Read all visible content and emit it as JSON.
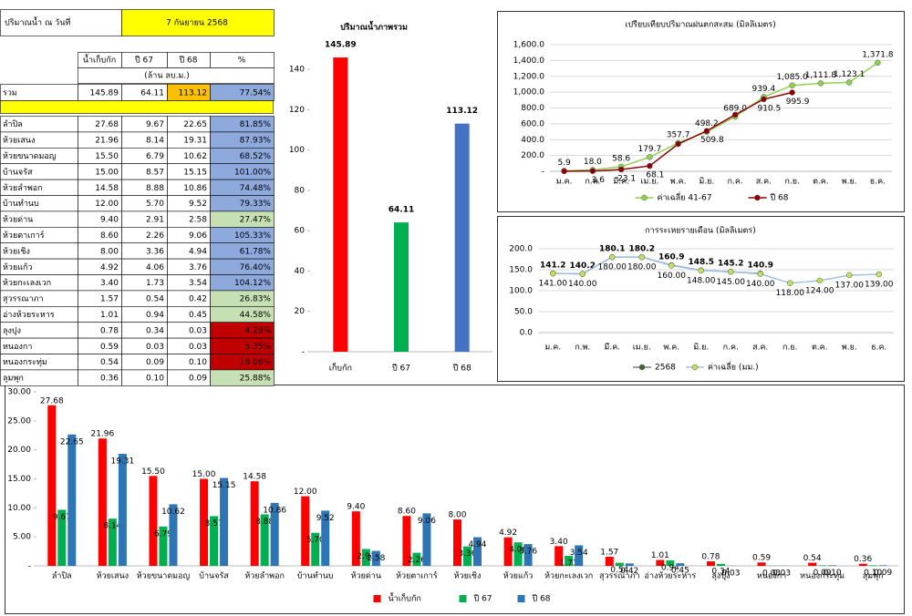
{
  "table": {
    "date_label": "ปริมาณน้ำ ณ วันที่",
    "date": "7 กันยายน 2568",
    "columns": [
      "น้ำเก็บกัก",
      "ปี 67",
      "ปี 68",
      "%"
    ],
    "unit": "(ล้าน ลบ.ม.)",
    "total": [
      "รวม",
      "145.89",
      "64.11",
      "113.12",
      "77.54%"
    ],
    "rows": [
      [
        "ลำปิล",
        "27.68",
        "9.67",
        "22.65",
        "81.85%"
      ],
      [
        "ห้วยเสนง",
        "21.96",
        "8.14",
        "19.31",
        "87.93%"
      ],
      [
        "ห้วยขนาดมอญ",
        "15.50",
        "6.79",
        "10.62",
        "68.52%"
      ],
      [
        "บ้านจรัส",
        "15.00",
        "8.57",
        "15.15",
        "101.00%"
      ],
      [
        "ห้วยลำพอก",
        "14.58",
        "8.88",
        "10.86",
        "74.48%"
      ],
      [
        "บ้านทำนบ",
        "12.00",
        "5.70",
        "9.52",
        "79.33%"
      ],
      [
        "ห้วยด่าน",
        "9.40",
        "2.91",
        "2.58",
        "27.47%"
      ],
      [
        "ห้วยตาเการ์",
        "8.60",
        "2.26",
        "9.06",
        "105.33%"
      ],
      [
        "ห้วยเชิง",
        "8.00",
        "3.36",
        "4.94",
        "61.78%"
      ],
      [
        "ห้วยแก้ว",
        "4.92",
        "4.06",
        "3.76",
        "76.40%"
      ],
      [
        "ห้วยกะเลงเวก",
        "3.40",
        "1.73",
        "3.54",
        "104.12%"
      ],
      [
        "สุวรรณาภา",
        "1.57",
        "0.54",
        "0.42",
        "26.83%"
      ],
      [
        "อ่างห้วยระหาร",
        "1.01",
        "0.94",
        "0.45",
        "44.58%"
      ],
      [
        "ลุงปุง",
        "0.78",
        "0.34",
        "0.03",
        "4.29%"
      ],
      [
        "หนองกา",
        "0.59",
        "0.03",
        "0.03",
        "5.35%"
      ],
      [
        "หนองกระทุ่ม",
        "0.54",
        "0.09",
        "0.10",
        "18.06%"
      ],
      [
        "ลุมพุก",
        "0.36",
        "0.10",
        "0.09",
        "25.88%"
      ]
    ]
  },
  "chart_data": [
    {
      "type": "bar",
      "title": "ปริมาณน้ำภาพรวม",
      "categories": [
        "เก็บกัก",
        "ปี 67",
        "ปี 68"
      ],
      "values": [
        145.89,
        64.11,
        113.12
      ],
      "colors": [
        "#ff0000",
        "#00b050",
        "#4472c4"
      ],
      "ylim": [
        0,
        150
      ],
      "yticks": [
        {
          "value": 0,
          "label": "-"
        },
        20,
        40,
        60,
        80,
        100,
        120,
        140
      ],
      "grid": false
    },
    {
      "type": "line",
      "title": "เปรียบเทียบปริมาณฝนตกสะสม (มิลลิเมตร)",
      "categories": [
        "ม.ค.",
        "ก.พ.",
        "มี.ค.",
        "เม.ย.",
        "พ.ค.",
        "มิ.ย.",
        "ก.ค.",
        "ส.ค.",
        "ก.ย.",
        "ต.ค.",
        "พ.ย.",
        "ธ.ค."
      ],
      "series": [
        {
          "name": "ค่าเฉลี่ย 41-67",
          "color": "#92d050",
          "values": [
            5.9,
            18.0,
            58.6,
            179.7,
            357.7,
            498.2,
            689.0,
            939.4,
            1085.0,
            1111.8,
            1123.1,
            1371.8
          ],
          "value_labels": [
            "5.9",
            "18.0",
            "58.6",
            "179.7",
            "357.7",
            "498.2",
            "689.0",
            "939.4",
            "1,085.0",
            "1,111.8",
            "1,123.1",
            "1,371.8"
          ]
        },
        {
          "name": "ปี 68",
          "color": "#8b0000",
          "values": [
            2.0,
            3.6,
            23.1,
            68.1,
            345.0,
            509.8,
            715.0,
            910.5,
            995.9,
            null,
            null,
            null
          ],
          "value_labels": [
            null,
            "3.6",
            "23.1",
            "68.1",
            null,
            "509.8",
            null,
            "910.5",
            "995.9",
            null,
            null,
            null
          ]
        }
      ],
      "ylim": [
        0,
        1600
      ],
      "yticks": [
        {
          "value": 0,
          "label": "-"
        },
        {
          "value": 200,
          "label": "200.0"
        },
        {
          "value": 400,
          "label": "400.0"
        },
        {
          "value": 600,
          "label": "600.0"
        },
        {
          "value": 800,
          "label": "800.0"
        },
        {
          "value": 1000,
          "label": "1,000.0"
        },
        {
          "value": 1200,
          "label": "1,200.0"
        },
        {
          "value": 1400,
          "label": "1,400.0"
        },
        {
          "value": 1600,
          "label": "1,600.0"
        }
      ],
      "grid": true,
      "legend": "bottom"
    },
    {
      "type": "line",
      "title": "การระเหยรายเดือน (มิลลิเมตร)",
      "categories": [
        "ม.ค.",
        "ก.พ.",
        "มี.ค.",
        "เม.ย.",
        "พ.ค.",
        "มิ.ย.",
        "ก.ค.",
        "ส.ค.",
        "ก.ย.",
        "ต.ค.",
        "พ.ย.",
        "ธ.ค."
      ],
      "series": [
        {
          "name": "2568",
          "color": "#3a6b1e",
          "line_color": "#7f7f9f",
          "values": [
            141.2,
            140.2,
            180.1,
            180.2,
            160.9,
            148.5,
            145.2,
            140.9,
            null,
            null,
            null,
            null
          ]
        },
        {
          "name": "ค่าเฉลี่ย (มม.)",
          "color": "#c5e05a",
          "line_color": "#9dc3e6",
          "values": [
            141.0,
            140.0,
            180.0,
            180.0,
            160.0,
            148.0,
            145.0,
            140.0,
            118.0,
            124.0,
            137.0,
            139.0
          ],
          "value_labels": [
            "141.00",
            "140.00",
            "180.00",
            "180.00",
            "160.00",
            "148.00",
            "145.00",
            "140.00",
            "118.00",
            "124.00",
            "137.00",
            "139.00"
          ]
        }
      ],
      "ylim": [
        0,
        200
      ],
      "yticks": [
        {
          "value": 0,
          "label": "0.0"
        },
        {
          "value": 50,
          "label": "50.0"
        },
        {
          "value": 100,
          "label": "100.0"
        },
        {
          "value": 150,
          "label": "150.0"
        },
        {
          "value": 200,
          "label": "200.0"
        }
      ],
      "grid": true,
      "legend": "bottom"
    },
    {
      "type": "bar",
      "categories": [
        "ลำปิล",
        "ห้วยเสนง",
        "ห้วยขนาดมอญ",
        "บ้านจรัส",
        "ห้วยลำพอก",
        "บ้านทำนบ",
        "ห้วยด่าน",
        "ห้วยตาเการ์",
        "ห้วยเชิง",
        "ห้วยแก้ว",
        "ห้วยกะเลงเวก",
        "สุวรรณาภา",
        "อ่างห้วยระหาร",
        "ลุงปุง",
        "หนองกา",
        "หนองกระทุ่ม",
        "ลุมพุก"
      ],
      "series": [
        {
          "name": "น้ำเก็บกัก",
          "color": "#ff0000",
          "values": [
            27.68,
            21.96,
            15.5,
            15,
            14.58,
            12,
            9.4,
            8.6,
            8,
            4.92,
            3.4,
            1.57,
            1.01,
            0.78,
            0.59,
            0.54,
            0.36
          ],
          "value_labels": [
            "27.68",
            "21.96",
            "15.50",
            "15.00",
            "14.58",
            "12.00",
            "9.40",
            "8.60",
            "8.00",
            "4.92",
            "3.40",
            "1.57",
            "1.01",
            "0.78",
            "0.59",
            "0.54",
            "0.36"
          ]
        },
        {
          "name": "ปี 67",
          "color": "#00b050",
          "values": [
            9.67,
            8.14,
            6.79,
            8.57,
            8.88,
            5.7,
            2.91,
            2.26,
            3.36,
            4.06,
            1.73,
            0.54,
            0.94,
            0.34,
            0.03,
            0.09,
            0.1
          ],
          "value_labels": [
            "9.67",
            "8.14",
            "6.79",
            "8.57",
            "8.88",
            "5.70",
            "2.91",
            "2.26",
            "3.36",
            "4.06",
            "1.73",
            "0.54",
            "0.94",
            "0.34",
            "0.03",
            "0.09",
            "0.10"
          ]
        },
        {
          "name": "ปี 68",
          "color": "#2e75b6",
          "values": [
            22.65,
            19.31,
            10.62,
            15.15,
            10.86,
            9.52,
            2.58,
            9.06,
            4.94,
            3.76,
            3.54,
            0.42,
            0.45,
            0.03,
            0.03,
            0.1,
            0.09
          ],
          "value_labels": [
            "22.65",
            "19.31",
            "10.62",
            "15.15",
            "10.86",
            "9.52",
            "2.58",
            "9.06",
            "4.94",
            "3.76",
            "3.54",
            "0.42",
            "0.45",
            "0.03",
            "0.03",
            "0.10",
            "0.09"
          ]
        }
      ],
      "ylim": [
        0,
        30
      ],
      "yticks": [
        {
          "value": 0,
          "label": "-"
        },
        {
          "value": 5,
          "label": "5.00"
        },
        {
          "value": 10,
          "label": "10.00"
        },
        {
          "value": 15,
          "label": "15.00"
        },
        {
          "value": 20,
          "label": "20.00"
        },
        {
          "value": 25,
          "label": "25.00"
        },
        {
          "value": 30,
          "label": "30.00"
        }
      ],
      "grid": false,
      "legend": "bottom"
    }
  ]
}
